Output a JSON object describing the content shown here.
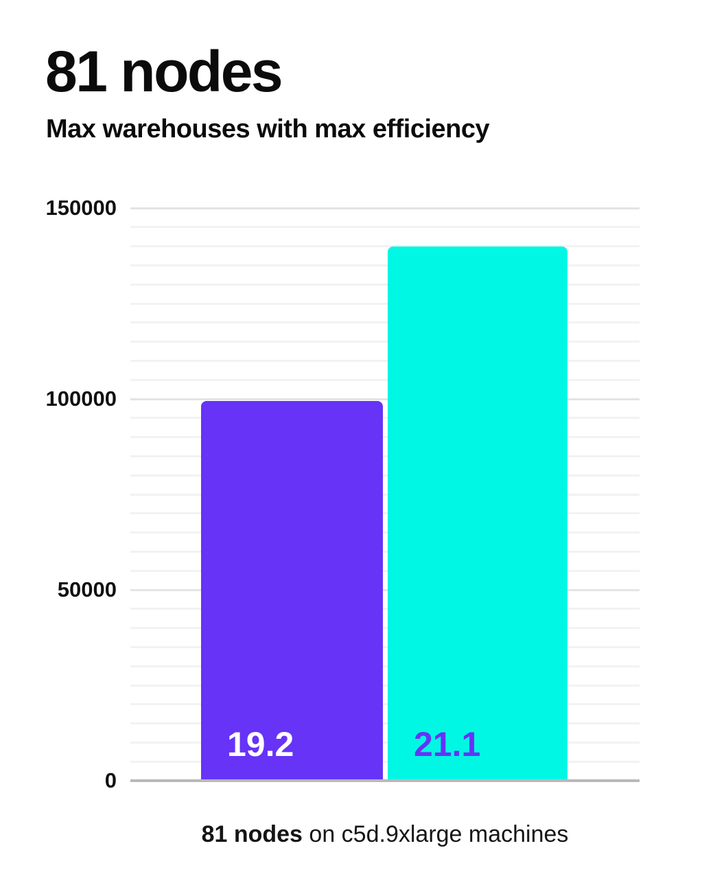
{
  "chart_data": {
    "type": "bar",
    "title": "81 nodes",
    "subtitle": "Max warehouses with max efficiency",
    "caption": {
      "bold": "81 nodes",
      "rest": " on c5d.9xlarge machines"
    },
    "bars": [
      {
        "name": "purple-bar",
        "value": 99500,
        "label": "19.2",
        "color": "#6633F7",
        "label_color": "#FFFFFF"
      },
      {
        "name": "cyan-bar",
        "value": 140000,
        "label": "21.1",
        "color": "#00F7E3",
        "label_color": "#6633F7"
      }
    ],
    "xlabel": "",
    "ylabel": "",
    "ylim": [
      0,
      150000
    ],
    "yticks": [
      0,
      50000,
      100000,
      150000
    ],
    "ytick_labels": [
      "0",
      "50000",
      "100000",
      "150000"
    ],
    "grid_step": 5000,
    "grid": "on",
    "legend": "none"
  },
  "colors": {
    "background": "#FFFFFF",
    "text": "#0B0B0B",
    "grid_minor": "#F2F2F2",
    "grid_major": "#E4E4E4",
    "axis_line": "#B9B9B9",
    "accent_purple": "#6633F7",
    "accent_cyan": "#00F7E3"
  }
}
